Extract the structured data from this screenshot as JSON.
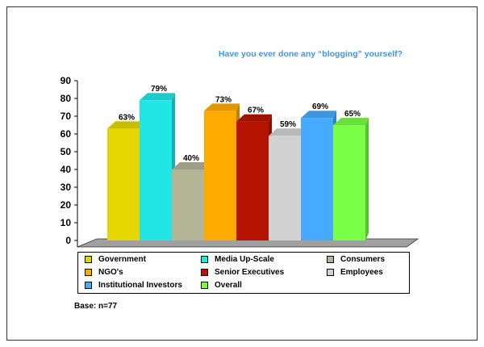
{
  "chart_data": {
    "type": "bar",
    "title": "Have you ever done any “blogging” yourself?",
    "xlabel": "",
    "ylabel": "",
    "ylim": [
      0,
      90
    ],
    "yticks": [
      0,
      10,
      20,
      30,
      40,
      50,
      60,
      70,
      80,
      90
    ],
    "grid": false,
    "legend": "bottom",
    "series": [
      {
        "name": "Government",
        "value": 63,
        "label": "63%",
        "color": "#e6d600"
      },
      {
        "name": "Media  Up-Scale",
        "value": 79,
        "label": "79%",
        "color": "#22e6e6"
      },
      {
        "name": "Consumers",
        "value": 40,
        "label": "40%",
        "color": "#b4b496"
      },
      {
        "name": "NGO's",
        "value": 73,
        "label": "73%",
        "color": "#ffaa00"
      },
      {
        "name": "Senior Executives",
        "value": 67,
        "label": "67%",
        "color": "#b41400"
      },
      {
        "name": "Employees",
        "value": 59,
        "label": "59%",
        "color": "#d2d2d2"
      },
      {
        "name": "Institutional Investors",
        "value": 69,
        "label": "69%",
        "color": "#46aaff"
      },
      {
        "name": "Overall",
        "value": 65,
        "label": "65%",
        "color": "#78ff46"
      }
    ]
  },
  "base_note": "Base: n=77"
}
